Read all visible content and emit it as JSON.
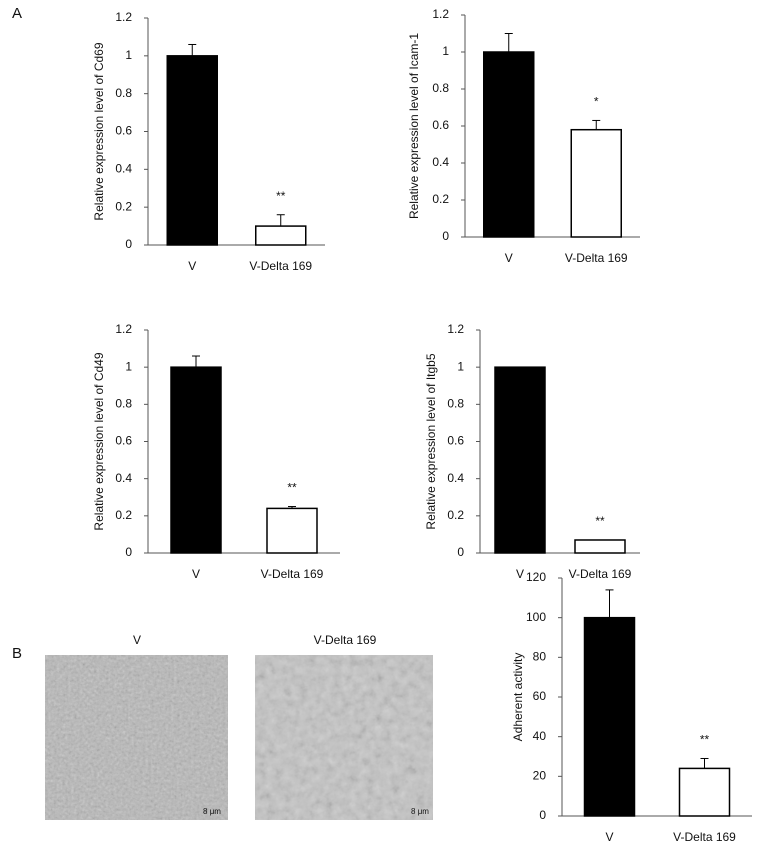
{
  "panels": [
    "A",
    "B"
  ],
  "images": [
    {
      "label": "V",
      "scale": "8 μm"
    },
    {
      "label": "V-Delta 169",
      "scale": "8 μm"
    }
  ],
  "chart_data": [
    {
      "type": "bar",
      "ylabel": "Relative expression level of Cd69",
      "categories": [
        "V",
        "V-Delta 169"
      ],
      "values": [
        1,
        0.1
      ],
      "errors": [
        0.06,
        0.06
      ],
      "colors": [
        "#000000",
        "#ffffff"
      ],
      "ylim": [
        0,
        1.2
      ],
      "yticks": [
        0,
        0.2,
        0.4,
        0.6,
        0.8,
        1,
        1.2
      ],
      "annotations": [
        {
          "text": "**",
          "x": "V-Delta 169"
        }
      ]
    },
    {
      "type": "bar",
      "ylabel": "Relative expression level of Icam-1",
      "categories": [
        "V",
        "V-Delta 169"
      ],
      "values": [
        1,
        0.58
      ],
      "errors": [
        0.1,
        0.05
      ],
      "colors": [
        "#000000",
        "#ffffff"
      ],
      "ylim": [
        0,
        1.2
      ],
      "yticks": [
        0,
        0.2,
        0.4,
        0.6,
        0.8,
        1,
        1.2
      ],
      "annotations": [
        {
          "text": "*",
          "x": "V-Delta 169"
        }
      ]
    },
    {
      "type": "bar",
      "ylabel": "Relative expression level of Cd49",
      "categories": [
        "V",
        "V-Delta 169"
      ],
      "values": [
        1,
        0.24
      ],
      "errors": [
        0.06,
        0.01
      ],
      "colors": [
        "#000000",
        "#ffffff"
      ],
      "ylim": [
        0,
        1.2
      ],
      "yticks": [
        0,
        0.2,
        0.4,
        0.6,
        0.8,
        1,
        1.2
      ],
      "annotations": [
        {
          "text": "**",
          "x": "V-Delta 169"
        }
      ]
    },
    {
      "type": "bar",
      "ylabel": "Relative expression level of Itgb5",
      "categories": [
        "V",
        "V-Delta 169"
      ],
      "values": [
        1,
        0.07
      ],
      "errors": [
        0,
        0
      ],
      "colors": [
        "#000000",
        "#ffffff"
      ],
      "ylim": [
        0,
        1.2
      ],
      "yticks": [
        0,
        0.2,
        0.4,
        0.6,
        0.8,
        1,
        1.2
      ],
      "annotations": [
        {
          "text": "**",
          "x": "V-Delta 169"
        }
      ]
    },
    {
      "type": "bar",
      "ylabel": "Adherent activity",
      "categories": [
        "V",
        "V-Delta 169"
      ],
      "values": [
        100,
        24
      ],
      "errors": [
        14,
        5
      ],
      "colors": [
        "#000000",
        "#ffffff"
      ],
      "ylim": [
        0,
        120
      ],
      "yticks": [
        0,
        20,
        40,
        60,
        80,
        100,
        120
      ],
      "annotations": [
        {
          "text": "**",
          "x": "V-Delta 169"
        }
      ]
    }
  ]
}
